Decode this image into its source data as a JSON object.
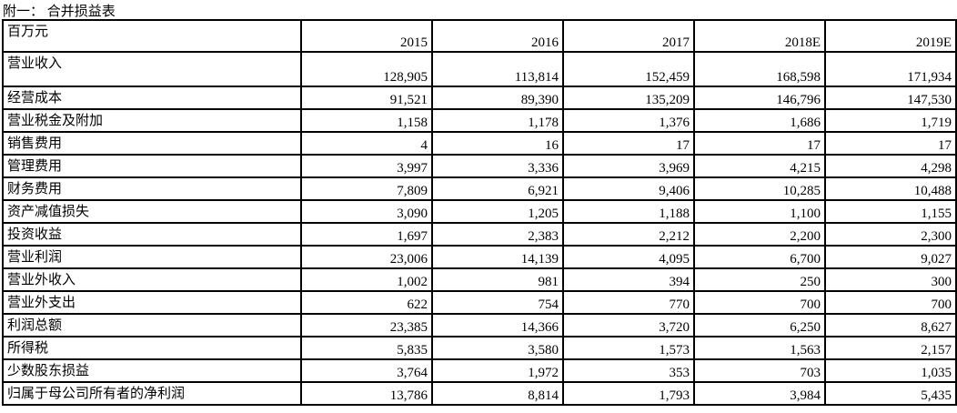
{
  "title": "附一： 合并损益表",
  "table": {
    "unit_label": "百万元",
    "columns": [
      "2015",
      "2016",
      "2017",
      "2018E",
      "2019E"
    ],
    "rows": [
      {
        "label": "营业收入",
        "values": [
          "128,905",
          "113,814",
          "152,459",
          "168,598",
          "171,934"
        ]
      },
      {
        "label": "经营成本",
        "values": [
          "91,521",
          "89,390",
          "135,209",
          "146,796",
          "147,530"
        ]
      },
      {
        "label": "营业税金及附加",
        "values": [
          "1,158",
          "1,178",
          "1,376",
          "1,686",
          "1,719"
        ]
      },
      {
        "label": "销售费用",
        "values": [
          "4",
          "16",
          "17",
          "17",
          "17"
        ]
      },
      {
        "label": "管理费用",
        "values": [
          "3,997",
          "3,336",
          "3,969",
          "4,215",
          "4,298"
        ]
      },
      {
        "label": "财务费用",
        "values": [
          "7,809",
          "6,921",
          "9,406",
          "10,285",
          "10,488"
        ]
      },
      {
        "label": "资产减值损失",
        "values": [
          "3,090",
          "1,205",
          "1,188",
          "1,100",
          "1,155"
        ]
      },
      {
        "label": "投资收益",
        "values": [
          "1,697",
          "2,383",
          "2,212",
          "2,200",
          "2,300"
        ]
      },
      {
        "label": "营业利润",
        "values": [
          "23,006",
          "14,139",
          "4,095",
          "6,700",
          "9,027"
        ]
      },
      {
        "label": "营业外收入",
        "values": [
          "1,002",
          "981",
          "394",
          "250",
          "300"
        ]
      },
      {
        "label": "营业外支出",
        "values": [
          "622",
          "754",
          "770",
          "700",
          "700"
        ]
      },
      {
        "label": "利润总额",
        "values": [
          "23,385",
          "14,366",
          "3,720",
          "6,250",
          "8,627"
        ]
      },
      {
        "label": "所得税",
        "values": [
          "5,835",
          "3,580",
          "1,573",
          "1,563",
          "2,157"
        ]
      },
      {
        "label": "少数股东损益",
        "values": [
          "3,764",
          "1,972",
          "353",
          "703",
          "1,035"
        ]
      },
      {
        "label": "归属于母公司所有者的净利润",
        "values": [
          "13,786",
          "8,814",
          "1,793",
          "3,984",
          "5,435"
        ]
      }
    ]
  },
  "colors": {
    "border": "#000000",
    "text": "#000000",
    "background": "#ffffff"
  }
}
